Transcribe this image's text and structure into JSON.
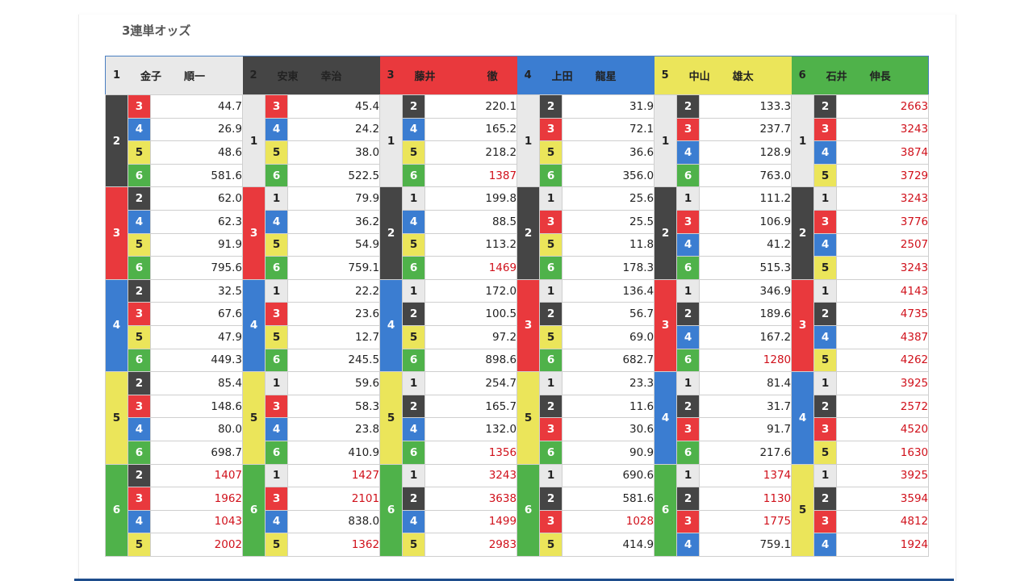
{
  "title": "3連単オッズ",
  "colors": {
    "1": "#e9e9e9",
    "2": "#454545",
    "3": "#e9393d",
    "4": "#3b7dd1",
    "5": "#ebe55a",
    "6": "#4fb24a",
    "high_odds": "#d0111b"
  },
  "racers": [
    {
      "num": "1",
      "surname": "金子",
      "given": "順一"
    },
    {
      "num": "2",
      "surname": "安東",
      "given": "幸治"
    },
    {
      "num": "3",
      "surname": "藤井",
      "given": "徹"
    },
    {
      "num": "4",
      "surname": "上田",
      "given": "龍星"
    },
    {
      "num": "5",
      "surname": "中山",
      "given": "雄太"
    },
    {
      "num": "6",
      "surname": "石井",
      "given": "伸長"
    }
  ],
  "columns": [
    {
      "first": "1",
      "groups": [
        {
          "second": "2",
          "rows": [
            {
              "third": "3",
              "odds": "44.7"
            },
            {
              "third": "4",
              "odds": "26.9"
            },
            {
              "third": "5",
              "odds": "48.6"
            },
            {
              "third": "6",
              "odds": "581.6"
            }
          ]
        },
        {
          "second": "3",
          "rows": [
            {
              "third": "2",
              "odds": "62.0"
            },
            {
              "third": "4",
              "odds": "62.3"
            },
            {
              "third": "5",
              "odds": "91.9"
            },
            {
              "third": "6",
              "odds": "795.6"
            }
          ]
        },
        {
          "second": "4",
          "rows": [
            {
              "third": "2",
              "odds": "32.5"
            },
            {
              "third": "3",
              "odds": "67.6"
            },
            {
              "third": "5",
              "odds": "47.9"
            },
            {
              "third": "6",
              "odds": "449.3"
            }
          ]
        },
        {
          "second": "5",
          "rows": [
            {
              "third": "2",
              "odds": "85.4"
            },
            {
              "third": "3",
              "odds": "148.6"
            },
            {
              "third": "4",
              "odds": "80.0"
            },
            {
              "third": "6",
              "odds": "698.7"
            }
          ]
        },
        {
          "second": "6",
          "rows": [
            {
              "third": "2",
              "odds": "1407"
            },
            {
              "third": "3",
              "odds": "1962"
            },
            {
              "third": "4",
              "odds": "1043"
            },
            {
              "third": "5",
              "odds": "2002"
            }
          ]
        }
      ]
    },
    {
      "first": "2",
      "groups": [
        {
          "second": "1",
          "rows": [
            {
              "third": "3",
              "odds": "45.4"
            },
            {
              "third": "4",
              "odds": "24.2"
            },
            {
              "third": "5",
              "odds": "38.0"
            },
            {
              "third": "6",
              "odds": "522.5"
            }
          ]
        },
        {
          "second": "3",
          "rows": [
            {
              "third": "1",
              "odds": "79.9"
            },
            {
              "third": "4",
              "odds": "36.2"
            },
            {
              "third": "5",
              "odds": "54.9"
            },
            {
              "third": "6",
              "odds": "759.1"
            }
          ]
        },
        {
          "second": "4",
          "rows": [
            {
              "third": "1",
              "odds": "22.2"
            },
            {
              "third": "3",
              "odds": "23.6"
            },
            {
              "third": "5",
              "odds": "12.7"
            },
            {
              "third": "6",
              "odds": "245.5"
            }
          ]
        },
        {
          "second": "5",
          "rows": [
            {
              "third": "1",
              "odds": "59.6"
            },
            {
              "third": "3",
              "odds": "58.3"
            },
            {
              "third": "4",
              "odds": "23.8"
            },
            {
              "third": "6",
              "odds": "410.9"
            }
          ]
        },
        {
          "second": "6",
          "rows": [
            {
              "third": "1",
              "odds": "1427"
            },
            {
              "third": "3",
              "odds": "2101"
            },
            {
              "third": "4",
              "odds": "838.0"
            },
            {
              "third": "5",
              "odds": "1362"
            }
          ]
        }
      ]
    },
    {
      "first": "3",
      "groups": [
        {
          "second": "1",
          "rows": [
            {
              "third": "2",
              "odds": "220.1"
            },
            {
              "third": "4",
              "odds": "165.2"
            },
            {
              "third": "5",
              "odds": "218.2"
            },
            {
              "third": "6",
              "odds": "1387"
            }
          ]
        },
        {
          "second": "2",
          "rows": [
            {
              "third": "1",
              "odds": "199.8"
            },
            {
              "third": "4",
              "odds": "88.5"
            },
            {
              "third": "5",
              "odds": "113.2"
            },
            {
              "third": "6",
              "odds": "1469"
            }
          ]
        },
        {
          "second": "4",
          "rows": [
            {
              "third": "1",
              "odds": "172.0"
            },
            {
              "third": "2",
              "odds": "100.5"
            },
            {
              "third": "5",
              "odds": "97.2"
            },
            {
              "third": "6",
              "odds": "898.6"
            }
          ]
        },
        {
          "second": "5",
          "rows": [
            {
              "third": "1",
              "odds": "254.7"
            },
            {
              "third": "2",
              "odds": "165.7"
            },
            {
              "third": "4",
              "odds": "132.0"
            },
            {
              "third": "6",
              "odds": "1356"
            }
          ]
        },
        {
          "second": "6",
          "rows": [
            {
              "third": "1",
              "odds": "3243"
            },
            {
              "third": "2",
              "odds": "3638"
            },
            {
              "third": "4",
              "odds": "1499"
            },
            {
              "third": "5",
              "odds": "2983"
            }
          ]
        }
      ]
    },
    {
      "first": "4",
      "groups": [
        {
          "second": "1",
          "rows": [
            {
              "third": "2",
              "odds": "31.9"
            },
            {
              "third": "3",
              "odds": "72.1"
            },
            {
              "third": "5",
              "odds": "36.6"
            },
            {
              "third": "6",
              "odds": "356.0"
            }
          ]
        },
        {
          "second": "2",
          "rows": [
            {
              "third": "1",
              "odds": "25.6"
            },
            {
              "third": "3",
              "odds": "25.5"
            },
            {
              "third": "5",
              "odds": "11.8"
            },
            {
              "third": "6",
              "odds": "178.3"
            }
          ]
        },
        {
          "second": "3",
          "rows": [
            {
              "third": "1",
              "odds": "136.4"
            },
            {
              "third": "2",
              "odds": "56.7"
            },
            {
              "third": "5",
              "odds": "69.0"
            },
            {
              "third": "6",
              "odds": "682.7"
            }
          ]
        },
        {
          "second": "5",
          "rows": [
            {
              "third": "1",
              "odds": "23.3"
            },
            {
              "third": "2",
              "odds": "11.6"
            },
            {
              "third": "3",
              "odds": "30.6"
            },
            {
              "third": "6",
              "odds": "90.9"
            }
          ]
        },
        {
          "second": "6",
          "rows": [
            {
              "third": "1",
              "odds": "690.6"
            },
            {
              "third": "2",
              "odds": "581.6"
            },
            {
              "third": "3",
              "odds": "1028"
            },
            {
              "third": "5",
              "odds": "414.9"
            }
          ]
        }
      ]
    },
    {
      "first": "5",
      "groups": [
        {
          "second": "1",
          "rows": [
            {
              "third": "2",
              "odds": "133.3"
            },
            {
              "third": "3",
              "odds": "237.7"
            },
            {
              "third": "4",
              "odds": "128.9"
            },
            {
              "third": "6",
              "odds": "763.0"
            }
          ]
        },
        {
          "second": "2",
          "rows": [
            {
              "third": "1",
              "odds": "111.2"
            },
            {
              "third": "3",
              "odds": "106.9"
            },
            {
              "third": "4",
              "odds": "41.2"
            },
            {
              "third": "6",
              "odds": "515.3"
            }
          ]
        },
        {
          "second": "3",
          "rows": [
            {
              "third": "1",
              "odds": "346.9"
            },
            {
              "third": "2",
              "odds": "189.6"
            },
            {
              "third": "4",
              "odds": "167.2"
            },
            {
              "third": "6",
              "odds": "1280"
            }
          ]
        },
        {
          "second": "4",
          "rows": [
            {
              "third": "1",
              "odds": "81.4"
            },
            {
              "third": "2",
              "odds": "31.7"
            },
            {
              "third": "3",
              "odds": "91.7"
            },
            {
              "third": "6",
              "odds": "217.6"
            }
          ]
        },
        {
          "second": "6",
          "rows": [
            {
              "third": "1",
              "odds": "1374"
            },
            {
              "third": "2",
              "odds": "1130"
            },
            {
              "third": "3",
              "odds": "1775"
            },
            {
              "third": "4",
              "odds": "759.1"
            }
          ]
        }
      ]
    },
    {
      "first": "6",
      "groups": [
        {
          "second": "1",
          "rows": [
            {
              "third": "2",
              "odds": "2663"
            },
            {
              "third": "3",
              "odds": "3243"
            },
            {
              "third": "4",
              "odds": "3874"
            },
            {
              "third": "5",
              "odds": "3729"
            }
          ]
        },
        {
          "second": "2",
          "rows": [
            {
              "third": "1",
              "odds": "3243"
            },
            {
              "third": "3",
              "odds": "3776"
            },
            {
              "third": "4",
              "odds": "2507"
            },
            {
              "third": "5",
              "odds": "3243"
            }
          ]
        },
        {
          "second": "3",
          "rows": [
            {
              "third": "1",
              "odds": "4143"
            },
            {
              "third": "2",
              "odds": "4735"
            },
            {
              "third": "4",
              "odds": "4387"
            },
            {
              "third": "5",
              "odds": "4262"
            }
          ]
        },
        {
          "second": "4",
          "rows": [
            {
              "third": "1",
              "odds": "3925"
            },
            {
              "third": "2",
              "odds": "2572"
            },
            {
              "third": "3",
              "odds": "4520"
            },
            {
              "third": "5",
              "odds": "1630"
            }
          ]
        },
        {
          "second": "5",
          "rows": [
            {
              "third": "1",
              "odds": "3925"
            },
            {
              "third": "2",
              "odds": "3594"
            },
            {
              "third": "3",
              "odds": "4812"
            },
            {
              "third": "4",
              "odds": "1924"
            }
          ]
        }
      ]
    }
  ]
}
